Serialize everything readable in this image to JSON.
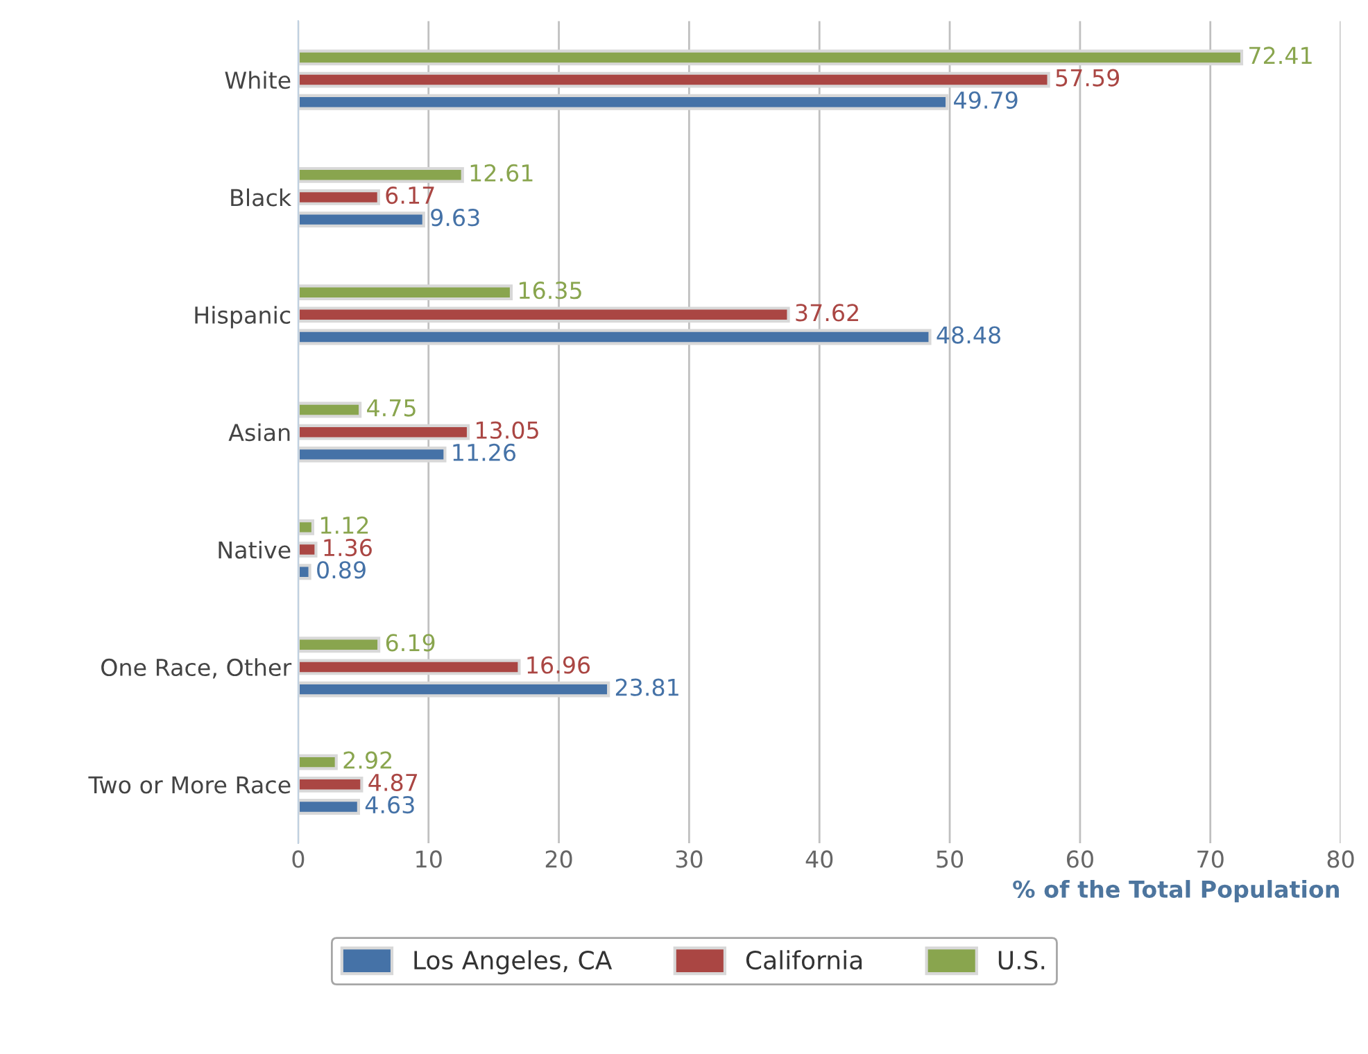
{
  "chart_data": {
    "type": "bar",
    "orientation": "horizontal",
    "xlabel": "% of the Total Population",
    "categories": [
      "White",
      "Black",
      "Hispanic",
      "Asian",
      "Native",
      "One Race, Other",
      "Two or More Race"
    ],
    "series": [
      {
        "name": "Los Angeles, CA",
        "color": "#4572a7",
        "values": [
          49.79,
          9.63,
          48.48,
          11.26,
          0.89,
          23.81,
          4.63
        ]
      },
      {
        "name": "California",
        "color": "#aa4643",
        "values": [
          57.59,
          6.17,
          37.62,
          13.05,
          1.36,
          16.96,
          4.87
        ]
      },
      {
        "name": "U.S.",
        "color": "#89a54e",
        "values": [
          72.41,
          12.61,
          16.35,
          4.75,
          1.12,
          6.19,
          2.92
        ]
      }
    ],
    "xlim": [
      0,
      80
    ],
    "xticks": [
      0,
      10,
      20,
      30,
      40,
      50,
      60,
      70,
      80
    ],
    "grid": "x",
    "legend": "bottom",
    "data_labels": true
  }
}
